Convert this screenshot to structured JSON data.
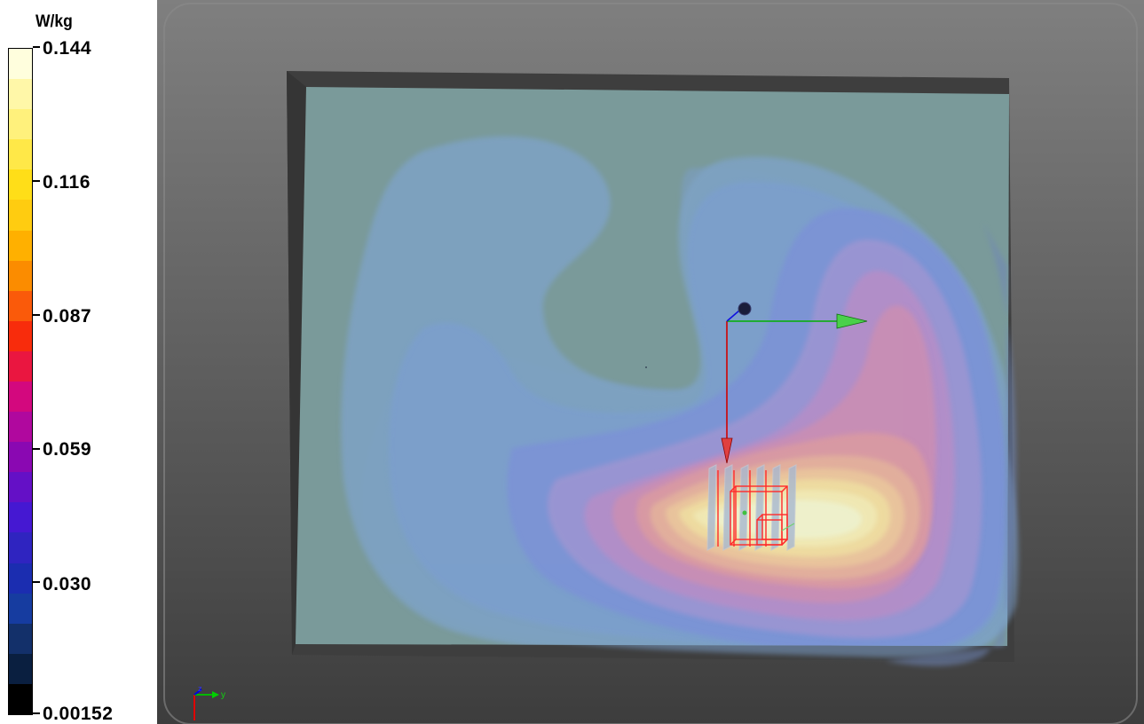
{
  "legend": {
    "unit": "W/kg",
    "ticks": [
      "0.144",
      "0.116",
      "0.087",
      "0.059",
      "0.030",
      "0.00152"
    ],
    "bin_colors": [
      "#fffedd",
      "#fff7a8",
      "#fff17c",
      "#ffe848",
      "#ffde18",
      "#ffcc10",
      "#ffb000",
      "#fb8c00",
      "#fa5a0a",
      "#f82c0c",
      "#ea1640",
      "#d3087e",
      "#b0089e",
      "#8a08b2",
      "#6410c6",
      "#4518d2",
      "#2f24c0",
      "#1b2db0",
      "#163ca0",
      "#13306a",
      "#0a1f40",
      "#000000"
    ]
  },
  "axis_triad": {
    "z": "z",
    "y": "y"
  },
  "colors": {
    "background_top": "#7d7d7d",
    "background_bottom": "#3e3e3e",
    "phantom_frame": "#3c3c3c",
    "plane_base": "#7b9a9a",
    "probe": "#ff2020",
    "x_arrow": "#d10000",
    "y_arrow": "#00b000",
    "z_arrow": "#0000d0"
  }
}
